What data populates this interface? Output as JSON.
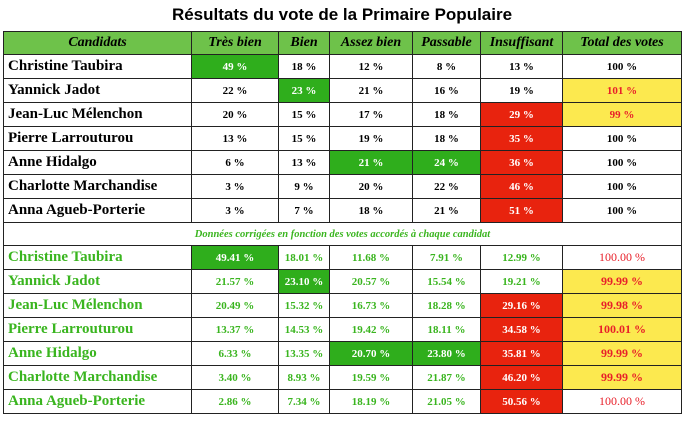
{
  "title": "Résultats du vote de la Primaire Populaire",
  "headers": [
    "Candidats",
    "Très bien",
    "Bien",
    "Assez bien",
    "Passable",
    "Insuffisant",
    "Total des votes"
  ],
  "note": "Données corrigées en fonction des votes accordés à chaque candidat",
  "colors": {
    "header_bg": "#6ec24a",
    "green": "#2fae1c",
    "red": "#e8230e",
    "yellow": "#fce94f",
    "corrected_text": "#3ab51f"
  },
  "raw": [
    {
      "name": "Christine Taubira",
      "cells": [
        "49 %",
        "18 %",
        "12 %",
        "8 %",
        "13 %"
      ],
      "total": "100 %",
      "highlight": [
        0,
        null,
        null,
        null,
        null
      ],
      "total_hl": false
    },
    {
      "name": "Yannick Jadot",
      "cells": [
        "22 %",
        "23 %",
        "21 %",
        "16 %",
        "19 %"
      ],
      "total": "101 %",
      "highlight": [
        null,
        1,
        null,
        null,
        null
      ],
      "total_hl": true
    },
    {
      "name": "Jean-Luc Mélenchon",
      "cells": [
        "20 %",
        "15 %",
        "17 %",
        "18 %",
        "29 %"
      ],
      "total": "99 %",
      "highlight": [
        null,
        null,
        null,
        null,
        4
      ],
      "total_hl": true
    },
    {
      "name": "Pierre Larrouturou",
      "cells": [
        "13 %",
        "15 %",
        "19 %",
        "18 %",
        "35 %"
      ],
      "total": "100 %",
      "highlight": [
        null,
        null,
        null,
        null,
        4
      ],
      "total_hl": false
    },
    {
      "name": "Anne Hidalgo",
      "cells": [
        "6 %",
        "13 %",
        "21 %",
        "24 %",
        "36 %"
      ],
      "total": "100 %",
      "highlight": [
        null,
        null,
        2,
        3,
        4
      ],
      "total_hl": false
    },
    {
      "name": "Charlotte Marchandise",
      "cells": [
        "3 %",
        "9 %",
        "20 %",
        "22 %",
        "46 %"
      ],
      "total": "100 %",
      "highlight": [
        null,
        null,
        null,
        null,
        4
      ],
      "total_hl": false
    },
    {
      "name": "Anna Agueb-Porterie",
      "cells": [
        "3 %",
        "7 %",
        "18 %",
        "21 %",
        "51 %"
      ],
      "total": "100 %",
      "highlight": [
        null,
        null,
        null,
        null,
        4
      ],
      "total_hl": false
    }
  ],
  "corrected": [
    {
      "name": "Christine Taubira",
      "cells": [
        "49.41 %",
        "18.01 %",
        "11.68 %",
        "7.91 %",
        "12.99 %"
      ],
      "total": "100.00 %",
      "highlight": [
        0,
        null,
        null,
        null,
        null
      ],
      "total_hl": false
    },
    {
      "name": "Yannick Jadot",
      "cells": [
        "21.57 %",
        "23.10 %",
        "20.57 %",
        "15.54 %",
        "19.21 %"
      ],
      "total": "99.99 %",
      "highlight": [
        null,
        1,
        null,
        null,
        null
      ],
      "total_hl": true
    },
    {
      "name": "Jean-Luc Mélenchon",
      "cells": [
        "20.49 %",
        "15.32 %",
        "16.73 %",
        "18.28 %",
        "29.16 %"
      ],
      "total": "99.98 %",
      "highlight": [
        null,
        null,
        null,
        null,
        4
      ],
      "total_hl": true
    },
    {
      "name": "Pierre Larrouturou",
      "cells": [
        "13.37 %",
        "14.53 %",
        "19.42 %",
        "18.11 %",
        "34.58 %"
      ],
      "total": "100.01 %",
      "highlight": [
        null,
        null,
        null,
        null,
        4
      ],
      "total_hl": true
    },
    {
      "name": "Anne Hidalgo",
      "cells": [
        "6.33 %",
        "13.35 %",
        "20.70 %",
        "23.80 %",
        "35.81 %"
      ],
      "total": "99.99 %",
      "highlight": [
        null,
        null,
        2,
        3,
        4
      ],
      "total_hl": true
    },
    {
      "name": "Charlotte Marchandise",
      "cells": [
        "3.40 %",
        "8.93 %",
        "19.59 %",
        "21.87 %",
        "46.20 %"
      ],
      "total": "99.99 %",
      "highlight": [
        null,
        null,
        null,
        null,
        4
      ],
      "total_hl": true
    },
    {
      "name": "Anna Agueb-Porterie",
      "cells": [
        "2.86 %",
        "7.34 %",
        "18.19 %",
        "21.05 %",
        "50.56 %"
      ],
      "total": "100.00 %",
      "highlight": [
        null,
        null,
        null,
        null,
        4
      ],
      "total_hl": false
    }
  ]
}
